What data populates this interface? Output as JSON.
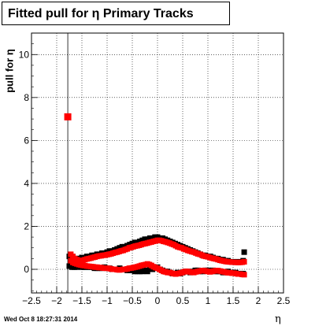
{
  "title": "Fitted pull for  η  Primary Tracks",
  "timestamp": "Wed Oct  8 18:27:31 2014",
  "chart_data": {
    "type": "scatter",
    "title": "Fitted pull for  η  Primary Tracks",
    "xlabel": "η",
    "ylabel": "pull for η",
    "xlim": [
      -2.5,
      2.5
    ],
    "ylim": [
      -1.1,
      11
    ],
    "x_ticks": [
      -2.5,
      -2,
      -1.5,
      -1,
      -0.5,
      0,
      0.5,
      1,
      1.5,
      2,
      2.5
    ],
    "x_tick_labels": [
      "−2.5",
      "−2",
      "−1.5",
      "−1",
      "−0.5",
      "0",
      "0.5",
      "1",
      "1.5",
      "2",
      "2.5"
    ],
    "y_ticks": [
      0,
      2,
      4,
      6,
      8,
      10
    ],
    "y_tick_labels": [
      "0",
      "2",
      "4",
      "6",
      "8",
      "10"
    ],
    "grid": true,
    "vline_x": -1.78,
    "outlier": {
      "x": -1.78,
      "y": 7.1,
      "color": "#ff0000"
    },
    "series": [
      {
        "color": "#000000",
        "marker": "square",
        "x": [
          -1.75,
          -1.7,
          -1.65,
          -1.6,
          -1.55,
          -1.5,
          -1.45,
          -1.4,
          -1.35,
          -1.3,
          -1.25,
          -1.2,
          -1.15,
          -1.1,
          -1.05,
          -1.0,
          -0.95,
          -0.9,
          -0.85,
          -0.8,
          -0.75,
          -0.7,
          -0.65,
          -0.6,
          -0.55,
          -0.5,
          -0.45,
          -0.4,
          -0.35,
          -0.3,
          -0.25,
          -0.2,
          -0.15,
          -0.1,
          -0.05,
          0.0,
          0.05,
          0.1,
          0.15,
          0.2,
          0.25,
          0.3,
          0.35,
          0.4,
          0.45,
          0.5,
          0.55,
          0.6,
          0.65,
          0.7,
          0.75,
          0.8,
          0.85,
          0.9,
          0.95,
          1.0,
          1.05,
          1.1,
          1.15,
          1.2,
          1.25,
          1.3,
          1.35,
          1.4,
          1.45,
          1.5,
          1.55,
          1.6,
          1.65,
          1.7,
          1.72
        ],
        "y": [
          0.6,
          0.55,
          0.5,
          0.5,
          0.5,
          0.55,
          0.55,
          0.6,
          0.6,
          0.65,
          0.65,
          0.7,
          0.7,
          0.75,
          0.75,
          0.8,
          0.85,
          0.85,
          0.9,
          0.95,
          1.0,
          1.05,
          1.05,
          1.1,
          1.15,
          1.2,
          1.25,
          1.25,
          1.3,
          1.35,
          1.4,
          1.4,
          1.45,
          1.45,
          1.5,
          1.5,
          1.45,
          1.45,
          1.4,
          1.35,
          1.3,
          1.25,
          1.2,
          1.15,
          1.1,
          1.05,
          1.0,
          0.95,
          0.9,
          0.85,
          0.8,
          0.75,
          0.7,
          0.65,
          0.65,
          0.6,
          0.6,
          0.55,
          0.5,
          0.5,
          0.45,
          0.45,
          0.4,
          0.4,
          0.35,
          0.35,
          0.35,
          0.35,
          0.35,
          0.4,
          0.8
        ]
      },
      {
        "color": "#000000",
        "marker": "square",
        "x": [
          -1.75,
          -1.7,
          -1.65,
          -1.6,
          -1.55,
          -1.5,
          -1.45,
          -1.4,
          -1.35,
          -1.3,
          -1.25,
          -1.2,
          -1.15,
          -1.1,
          -1.05,
          -1.0,
          -0.95,
          -0.9,
          -0.85,
          -0.8,
          -0.75,
          -0.7,
          -0.65,
          -0.6,
          -0.55,
          -0.5,
          -0.45,
          -0.4,
          -0.35,
          -0.3,
          -0.25,
          -0.2,
          -0.15,
          -0.1,
          -0.05,
          0.0,
          0.05,
          0.1,
          0.15,
          0.2,
          0.25,
          0.3,
          0.35,
          0.4,
          0.45,
          0.5,
          0.55,
          0.6,
          0.65,
          0.7,
          0.75,
          0.8,
          0.85,
          0.9,
          0.95,
          1.0,
          1.05,
          1.1,
          1.15,
          1.2,
          1.25,
          1.3,
          1.35,
          1.4,
          1.45,
          1.5,
          1.55,
          1.6,
          1.65,
          1.7
        ],
        "y": [
          0.15,
          0.1,
          0.1,
          0.1,
          0.15,
          0.1,
          0.1,
          0.1,
          0.1,
          0.1,
          0.05,
          0.05,
          0.05,
          0.05,
          0.1,
          0.05,
          0.05,
          0.0,
          0.0,
          0.0,
          0.05,
          0.0,
          0.0,
          -0.05,
          -0.05,
          -0.05,
          -0.1,
          -0.1,
          -0.1,
          -0.1,
          -0.05,
          -0.1,
          0.0,
          0.0,
          0.05,
          0.1,
          0.0,
          -0.05,
          -0.1,
          -0.1,
          -0.15,
          -0.2,
          -0.2,
          -0.15,
          -0.2,
          -0.15,
          -0.1,
          -0.1,
          -0.15,
          -0.1,
          -0.05,
          -0.05,
          -0.1,
          -0.1,
          -0.05,
          -0.05,
          -0.1,
          -0.05,
          -0.1,
          -0.1,
          -0.1,
          -0.15,
          -0.15,
          -0.1,
          -0.15,
          -0.15,
          -0.15,
          -0.2,
          -0.2,
          -0.2
        ]
      },
      {
        "color": "#ff0000",
        "marker": "square",
        "x": [
          -1.72,
          -1.68,
          -1.64,
          -1.6,
          -1.56,
          -1.52,
          -1.48,
          -1.44,
          -1.4,
          -1.36,
          -1.32,
          -1.28,
          -1.24,
          -1.2,
          -1.16,
          -1.12,
          -1.08,
          -1.04,
          -1.0,
          -0.96,
          -0.92,
          -0.88,
          -0.84,
          -0.8,
          -0.76,
          -0.72,
          -0.68,
          -0.64,
          -0.6,
          -0.56,
          -0.52,
          -0.48,
          -0.44,
          -0.4,
          -0.36,
          -0.32,
          -0.28,
          -0.24,
          -0.2,
          -0.16,
          -0.12,
          -0.08,
          -0.04,
          0.0,
          0.04,
          0.08,
          0.12,
          0.16,
          0.2,
          0.24,
          0.28,
          0.32,
          0.36,
          0.4,
          0.44,
          0.48,
          0.52,
          0.56,
          0.6,
          0.64,
          0.68,
          0.72,
          0.76,
          0.8,
          0.84,
          0.88,
          0.92,
          0.96,
          1.0,
          1.04,
          1.08,
          1.12,
          1.16,
          1.2,
          1.24,
          1.28,
          1.32,
          1.36,
          1.4,
          1.44,
          1.48,
          1.52,
          1.56,
          1.6,
          1.64,
          1.68,
          1.72
        ],
        "y": [
          0.7,
          0.6,
          0.5,
          0.45,
          0.42,
          0.4,
          0.42,
          0.45,
          0.48,
          0.5,
          0.52,
          0.55,
          0.57,
          0.6,
          0.62,
          0.63,
          0.65,
          0.66,
          0.68,
          0.7,
          0.72,
          0.75,
          0.78,
          0.8,
          0.83,
          0.86,
          0.88,
          0.92,
          0.95,
          1.0,
          1.02,
          1.05,
          1.08,
          1.1,
          1.12,
          1.15,
          1.18,
          1.2,
          1.22,
          1.25,
          1.27,
          1.3,
          1.32,
          1.35,
          1.35,
          1.33,
          1.3,
          1.28,
          1.25,
          1.22,
          1.18,
          1.15,
          1.1,
          1.05,
          1.02,
          1.0,
          0.95,
          0.92,
          0.88,
          0.85,
          0.82,
          0.8,
          0.76,
          0.72,
          0.7,
          0.66,
          0.62,
          0.6,
          0.58,
          0.55,
          0.52,
          0.5,
          0.48,
          0.45,
          0.42,
          0.4,
          0.38,
          0.36,
          0.35,
          0.34,
          0.33,
          0.33,
          0.32,
          0.32,
          0.32,
          0.33,
          0.35
        ]
      },
      {
        "color": "#ff0000",
        "marker": "square",
        "x": [
          -1.72,
          -1.68,
          -1.64,
          -1.6,
          -1.56,
          -1.52,
          -1.48,
          -1.44,
          -1.4,
          -1.36,
          -1.32,
          -1.28,
          -1.24,
          -1.2,
          -1.16,
          -1.12,
          -1.08,
          -1.04,
          -1.0,
          -0.96,
          -0.92,
          -0.88,
          -0.84,
          -0.8,
          -0.76,
          -0.72,
          -0.68,
          -0.64,
          -0.6,
          -0.56,
          -0.52,
          -0.48,
          -0.44,
          -0.4,
          -0.36,
          -0.32,
          -0.28,
          -0.24,
          -0.2,
          -0.16,
          -0.12,
          -0.08,
          -0.04,
          0.0,
          0.04,
          0.08,
          0.12,
          0.16,
          0.2,
          0.24,
          0.28,
          0.32,
          0.36,
          0.4,
          0.44,
          0.48,
          0.52,
          0.56,
          0.6,
          0.64,
          0.68,
          0.72,
          0.76,
          0.8,
          0.84,
          0.88,
          0.92,
          0.96,
          1.0,
          1.04,
          1.08,
          1.12,
          1.16,
          1.2,
          1.24,
          1.28,
          1.32,
          1.36,
          1.4,
          1.44,
          1.48,
          1.52,
          1.56,
          1.6,
          1.64,
          1.68,
          1.72
        ],
        "y": [
          0.4,
          0.32,
          0.28,
          0.25,
          0.22,
          0.2,
          0.18,
          0.17,
          0.15,
          0.14,
          0.13,
          0.12,
          0.1,
          0.1,
          0.08,
          0.08,
          0.06,
          0.05,
          0.05,
          0.04,
          0.02,
          0.0,
          0.0,
          -0.02,
          -0.03,
          -0.02,
          0.0,
          0.0,
          0.02,
          0.05,
          0.06,
          0.08,
          0.1,
          0.12,
          0.15,
          0.18,
          0.2,
          0.22,
          0.25,
          0.22,
          0.18,
          0.12,
          0.08,
          0.05,
          0.0,
          -0.05,
          -0.1,
          -0.12,
          -0.15,
          -0.15,
          -0.18,
          -0.2,
          -0.22,
          -0.2,
          -0.18,
          -0.16,
          -0.12,
          -0.1,
          -0.1,
          -0.12,
          -0.14,
          -0.15,
          -0.12,
          -0.1,
          -0.08,
          -0.06,
          -0.06,
          -0.08,
          -0.1,
          -0.12,
          -0.1,
          -0.08,
          -0.06,
          -0.06,
          -0.08,
          -0.1,
          -0.12,
          -0.14,
          -0.16,
          -0.16,
          -0.18,
          -0.18,
          -0.2,
          -0.22,
          -0.22,
          -0.24,
          -0.25
        ]
      }
    ]
  }
}
